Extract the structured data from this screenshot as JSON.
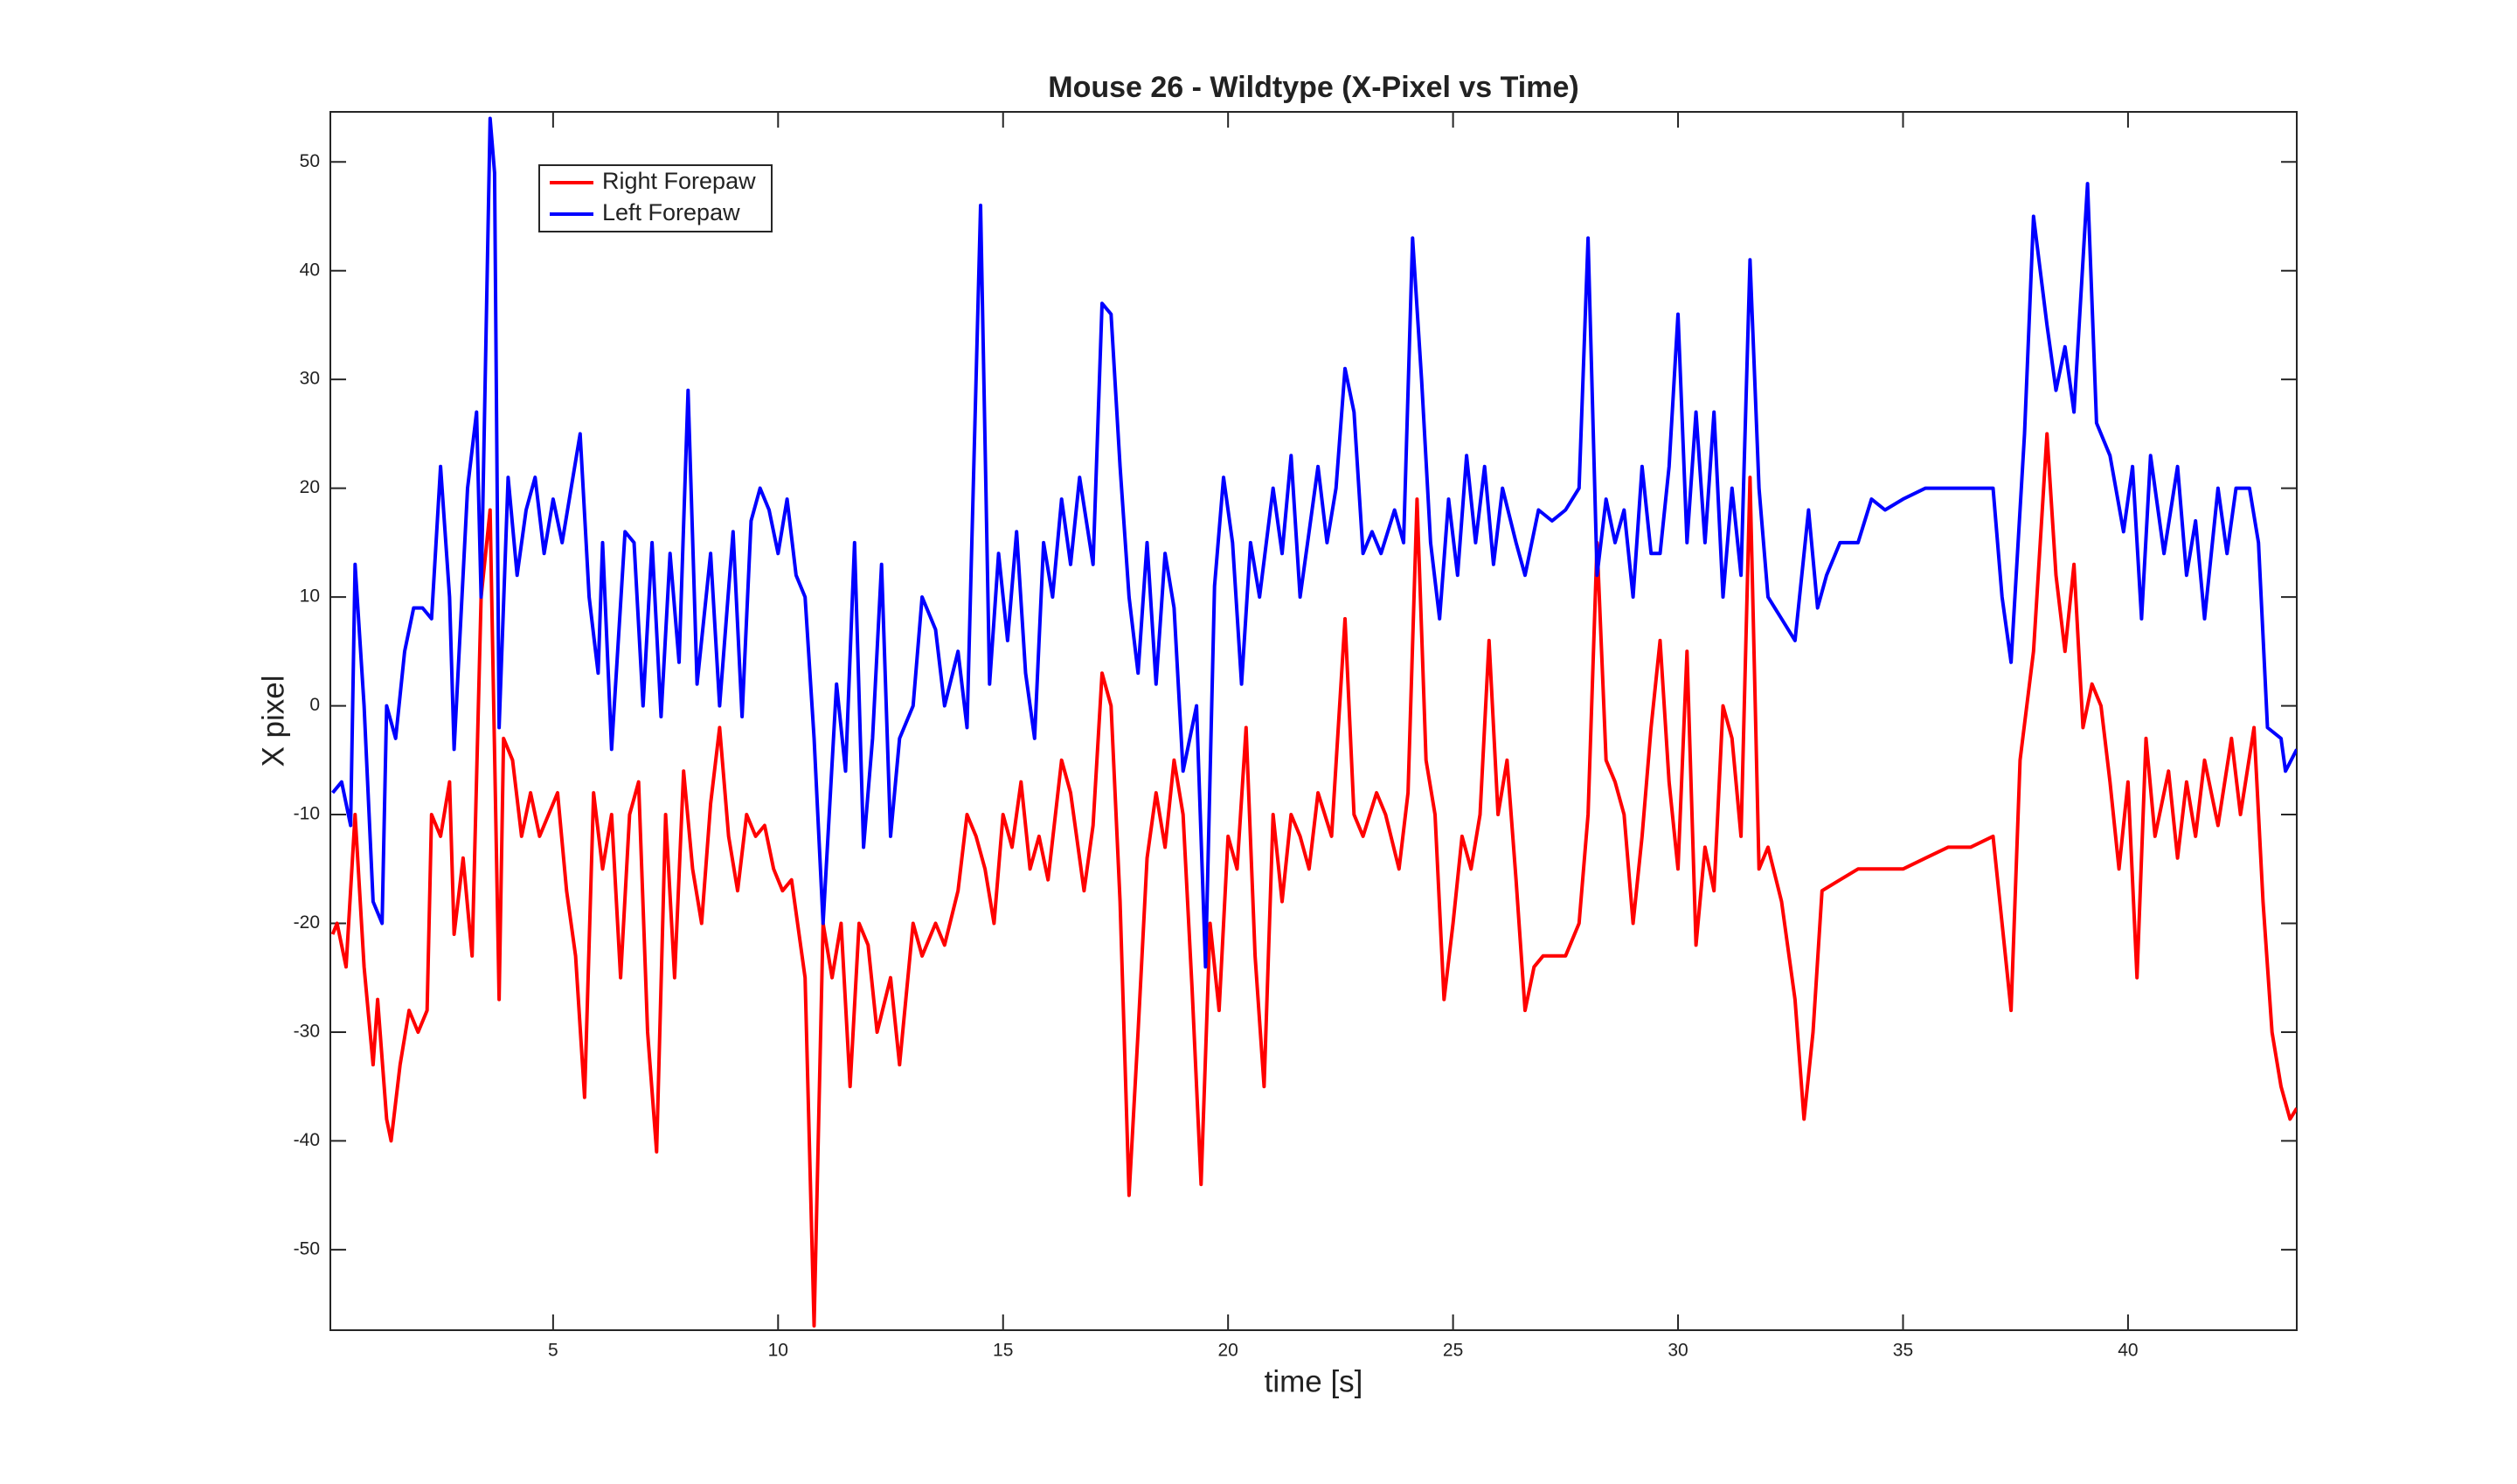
{
  "chart_data": {
    "type": "line",
    "title": "Mouse 26 - Wildtype (X-Pixel vs Time)",
    "x_label": "time [s]",
    "y_label": "X pixel",
    "xlim": [
      0.05,
      43.75
    ],
    "ylim": [
      -57.4,
      54.6
    ],
    "xticks": [
      5,
      10,
      15,
      20,
      25,
      30,
      35,
      40
    ],
    "yticks": [
      -50,
      -40,
      -30,
      -20,
      -10,
      0,
      10,
      20,
      30,
      40,
      50
    ],
    "grid": false,
    "legend": "upper left",
    "series": [
      {
        "name": "Right Forepaw",
        "color": "#ff0000",
        "x": [
          0.1,
          0.2,
          0.4,
          0.6,
          0.8,
          1.0,
          1.1,
          1.3,
          1.4,
          1.6,
          1.8,
          2.0,
          2.2,
          2.3,
          2.5,
          2.7,
          2.8,
          3.0,
          3.2,
          3.4,
          3.6,
          3.8,
          3.9,
          4.1,
          4.3,
          4.5,
          4.7,
          4.9,
          5.1,
          5.3,
          5.5,
          5.7,
          5.9,
          6.1,
          6.3,
          6.5,
          6.7,
          6.9,
          7.1,
          7.3,
          7.5,
          7.7,
          7.9,
          8.1,
          8.3,
          8.5,
          8.7,
          8.9,
          9.1,
          9.3,
          9.5,
          9.7,
          9.9,
          10.1,
          10.3,
          10.6,
          10.8,
          11.0,
          11.2,
          11.4,
          11.6,
          11.8,
          12.0,
          12.2,
          12.5,
          12.7,
          13.0,
          13.2,
          13.5,
          13.7,
          14.0,
          14.2,
          14.4,
          14.6,
          14.8,
          15.0,
          15.2,
          15.4,
          15.6,
          15.8,
          16.0,
          16.3,
          16.5,
          16.8,
          17.0,
          17.2,
          17.4,
          17.6,
          17.8,
          18.0,
          18.2,
          18.4,
          18.6,
          18.8,
          19.0,
          19.2,
          19.4,
          19.6,
          19.8,
          20.0,
          20.2,
          20.4,
          20.6,
          20.8,
          21.0,
          21.2,
          21.4,
          21.6,
          21.8,
          22.0,
          22.3,
          22.6,
          22.8,
          23.0,
          23.3,
          23.5,
          23.8,
          24.0,
          24.2,
          24.4,
          24.6,
          24.8,
          25.0,
          25.2,
          25.4,
          25.6,
          25.8,
          26.0,
          26.2,
          26.4,
          26.6,
          26.8,
          27.0,
          27.5,
          27.8,
          28.0,
          28.2,
          28.4,
          28.6,
          28.8,
          29.0,
          29.2,
          29.4,
          29.6,
          29.8,
          30.0,
          30.2,
          30.4,
          30.6,
          30.8,
          31.0,
          31.2,
          31.4,
          31.6,
          31.8,
          32.0,
          32.3,
          32.6,
          32.8,
          33.0,
          33.2,
          33.6,
          34.0,
          34.5,
          35.0,
          35.5,
          36.0,
          36.5,
          37.0,
          37.2,
          37.4,
          37.6,
          37.9,
          38.2,
          38.4,
          38.6,
          38.8,
          39.0,
          39.2,
          39.4,
          39.6,
          39.8,
          40.0,
          40.2,
          40.4,
          40.6,
          40.9,
          41.1,
          41.3,
          41.5,
          41.7,
          42.0,
          42.3,
          42.5,
          42.8,
          43.0,
          43.2,
          43.4,
          43.6,
          43.75
        ],
        "values": [
          -21,
          -20,
          -24,
          -10,
          -24,
          -33,
          -27,
          -38,
          -40,
          -33,
          -28,
          -30,
          -28,
          -10,
          -12,
          -7,
          -21,
          -14,
          -23,
          10,
          18,
          -27,
          -3,
          -5,
          -12,
          -8,
          -12,
          -10,
          -8,
          -17,
          -23,
          -36,
          -8,
          -15,
          -10,
          -25,
          -10,
          -7,
          -30,
          -41,
          -10,
          -25,
          -6,
          -15,
          -20,
          -9,
          -2,
          -12,
          -17,
          -10,
          -12,
          -11,
          -15,
          -17,
          -16,
          -25,
          -57,
          -20,
          -25,
          -20,
          -35,
          -20,
          -22,
          -30,
          -25,
          -33,
          -20,
          -23,
          -20,
          -22,
          -17,
          -10,
          -12,
          -15,
          -20,
          -10,
          -13,
          -7,
          -15,
          -12,
          -16,
          -5,
          -8,
          -17,
          -11,
          3,
          0,
          -18,
          -45,
          -30,
          -14,
          -8,
          -13,
          -5,
          -10,
          -26,
          -44,
          -20,
          -28,
          -12,
          -15,
          -2,
          -23,
          -35,
          -10,
          -18,
          -10,
          -12,
          -15,
          -8,
          -12,
          8,
          -10,
          -12,
          -8,
          -10,
          -15,
          -8,
          19,
          -5,
          -10,
          -27,
          -20,
          -12,
          -15,
          -10,
          6,
          -10,
          -5,
          -16,
          -28,
          -24,
          -23,
          -23,
          -20,
          -10,
          15,
          -5,
          -7,
          -10,
          -20,
          -12,
          -2,
          6,
          -7,
          -15,
          5,
          -22,
          -13,
          -17,
          0,
          -3,
          -12,
          21,
          -15,
          -13,
          -18,
          -27,
          -38,
          -30,
          -17,
          -16,
          -15,
          -15,
          -15,
          -14,
          -13,
          -13,
          -12,
          -20,
          -28,
          -5,
          5,
          25,
          12,
          5,
          13,
          -2,
          2,
          0,
          -7,
          -15,
          -7,
          -25,
          -3,
          -12,
          -6,
          -14,
          -7,
          -12,
          -5,
          -11,
          -3,
          -10,
          -2,
          -18,
          -30,
          -35,
          -38,
          -37
        ]
      },
      {
        "name": "Left Forepaw",
        "color": "#0000ff",
        "x": [
          0.1,
          0.3,
          0.5,
          0.6,
          0.8,
          1.0,
          1.2,
          1.3,
          1.5,
          1.7,
          1.9,
          2.1,
          2.3,
          2.5,
          2.7,
          2.8,
          3.1,
          3.3,
          3.4,
          3.6,
          3.7,
          3.8,
          4.0,
          4.2,
          4.4,
          4.6,
          4.8,
          5.0,
          5.2,
          5.4,
          5.6,
          5.8,
          6.0,
          6.1,
          6.3,
          6.6,
          6.8,
          7.0,
          7.2,
          7.4,
          7.6,
          7.8,
          8.0,
          8.2,
          8.5,
          8.7,
          9.0,
          9.2,
          9.4,
          9.6,
          9.8,
          10.0,
          10.2,
          10.4,
          10.6,
          10.8,
          11.0,
          11.3,
          11.5,
          11.7,
          11.9,
          12.1,
          12.3,
          12.5,
          12.7,
          13.0,
          13.2,
          13.5,
          13.7,
          14.0,
          14.2,
          14.5,
          14.7,
          14.9,
          15.1,
          15.3,
          15.5,
          15.7,
          15.9,
          16.1,
          16.3,
          16.5,
          16.7,
          17.0,
          17.2,
          17.4,
          17.6,
          17.8,
          18.0,
          18.2,
          18.4,
          18.6,
          18.8,
          19.0,
          19.3,
          19.5,
          19.7,
          19.9,
          20.1,
          20.3,
          20.5,
          20.7,
          21.0,
          21.2,
          21.4,
          21.6,
          21.8,
          22.0,
          22.2,
          22.4,
          22.6,
          22.8,
          23.0,
          23.2,
          23.4,
          23.7,
          23.9,
          24.1,
          24.3,
          24.5,
          24.7,
          24.9,
          25.1,
          25.3,
          25.5,
          25.7,
          25.9,
          26.1,
          26.4,
          26.6,
          26.9,
          27.2,
          27.5,
          27.8,
          28.0,
          28.2,
          28.4,
          28.6,
          28.8,
          29.0,
          29.2,
          29.4,
          29.6,
          29.8,
          30.0,
          30.2,
          30.4,
          30.6,
          30.8,
          31.0,
          31.2,
          31.4,
          31.6,
          31.8,
          32.0,
          32.3,
          32.6,
          32.9,
          33.1,
          33.3,
          33.6,
          34.0,
          34.3,
          34.6,
          35.0,
          35.5,
          36.0,
          36.5,
          37.0,
          37.2,
          37.4,
          37.7,
          37.9,
          38.2,
          38.4,
          38.6,
          38.8,
          39.1,
          39.3,
          39.6,
          39.9,
          40.1,
          40.3,
          40.5,
          40.8,
          41.1,
          41.3,
          41.5,
          41.7,
          42.0,
          42.2,
          42.4,
          42.7,
          42.9,
          43.1,
          43.4,
          43.5,
          43.75
        ],
        "values": [
          -8,
          -7,
          -11,
          13,
          0,
          -18,
          -20,
          0,
          -3,
          5,
          9,
          9,
          8,
          22,
          10,
          -4,
          20,
          27,
          10,
          54,
          49,
          -2,
          21,
          12,
          18,
          21,
          14,
          19,
          15,
          20,
          25,
          10,
          3,
          15,
          -4,
          16,
          15,
          0,
          15,
          -1,
          14,
          4,
          29,
          2,
          14,
          0,
          16,
          -1,
          17,
          20,
          18,
          14,
          19,
          12,
          10,
          -3,
          -20,
          2,
          -6,
          15,
          -13,
          -3,
          13,
          -12,
          -3,
          0,
          10,
          7,
          0,
          5,
          -2,
          46,
          2,
          14,
          6,
          16,
          3,
          -3,
          15,
          10,
          19,
          13,
          21,
          13,
          37,
          36,
          22,
          10,
          3,
          15,
          2,
          14,
          9,
          -6,
          0,
          -24,
          11,
          21,
          15,
          2,
          15,
          10,
          20,
          14,
          23,
          10,
          16,
          22,
          15,
          20,
          31,
          27,
          14,
          16,
          14,
          18,
          15,
          43,
          30,
          15,
          8,
          19,
          12,
          23,
          15,
          22,
          13,
          20,
          15,
          12,
          18,
          17,
          18,
          20,
          43,
          12,
          19,
          15,
          18,
          10,
          22,
          14,
          14,
          22,
          36,
          15,
          27,
          15,
          27,
          10,
          20,
          12,
          41,
          20,
          10,
          8,
          6,
          18,
          9,
          12,
          15,
          15,
          19,
          18,
          19,
          20,
          20,
          20,
          20,
          10,
          4,
          25,
          45,
          35,
          29,
          33,
          27,
          48,
          26,
          23,
          16,
          22,
          8,
          23,
          14,
          22,
          12,
          17,
          8,
          20,
          14,
          20,
          20,
          15,
          -2,
          -3,
          -6,
          -4
        ]
      }
    ]
  }
}
